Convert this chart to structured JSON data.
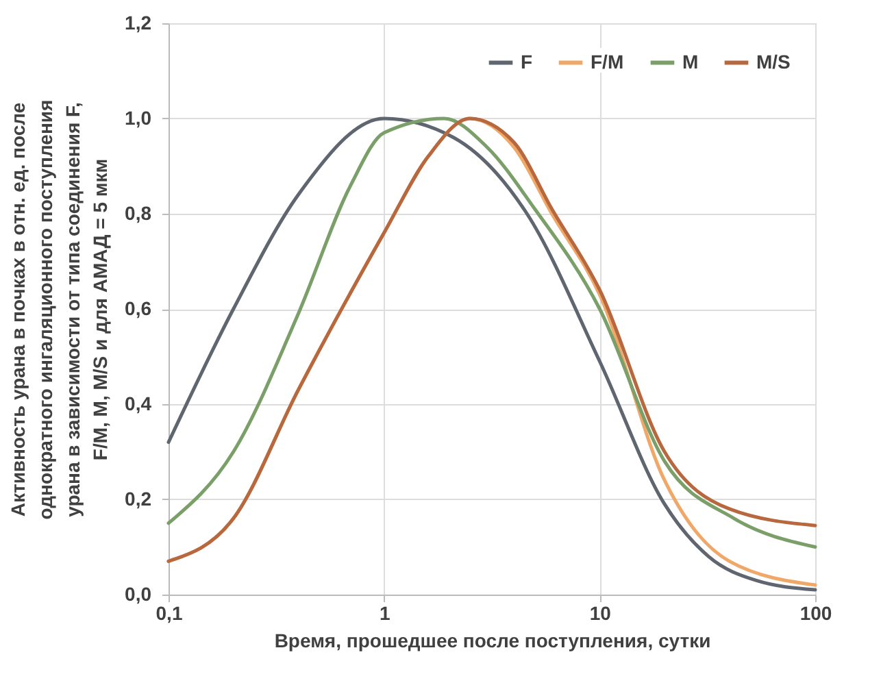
{
  "chart_data": {
    "type": "line",
    "xlabel": "Время, прошедшее после поступления, сутки",
    "ylabel": "Активность урана в почках в отн. ед.  после\nоднократного ингаляционного поступления\nурана в зависимости от типа соединения F,\nF/M, M, M/S и для АМАД = 5 мкм",
    "log": "x",
    "grid": true,
    "legend": "top right",
    "line_style": "solid",
    "xlim": [
      0.1,
      100
    ],
    "xticks": [
      {
        "value": 0.1,
        "label": "0,1"
      },
      1,
      10,
      100
    ],
    "ylim": [
      0,
      1.2
    ],
    "yticks": [
      {
        "value": 0,
        "label": "0,0"
      },
      {
        "value": 0.2,
        "label": "0,2"
      },
      {
        "value": 0.4,
        "label": "0,4"
      },
      {
        "value": 0.6,
        "label": "0,6"
      },
      {
        "value": 0.8,
        "label": "0,8"
      },
      {
        "value": 1,
        "label": "1,0"
      },
      {
        "value": 1.2,
        "label": "1,2"
      }
    ],
    "series": [
      {
        "name": "F",
        "color": "#5f6670",
        "x": [
          0.1,
          0.2,
          0.4,
          1,
          2.1,
          4.6,
          10,
          20,
          32,
          53,
          100
        ],
        "values": [
          0.32,
          0.6,
          0.84,
          1.0,
          0.96,
          0.8,
          0.49,
          0.19,
          0.08,
          0.03,
          0.01
        ]
      },
      {
        "name": "F/M",
        "color": "#f0a868",
        "x": [
          0.1,
          0.2,
          0.4,
          1,
          1.6,
          2.5,
          4,
          6,
          10,
          20,
          40,
          100
        ],
        "values": [
          0.07,
          0.16,
          0.43,
          0.76,
          0.92,
          1.0,
          0.94,
          0.8,
          0.63,
          0.24,
          0.07,
          0.02
        ]
      },
      {
        "name": "M",
        "color": "#7a9f68",
        "x": [
          0.1,
          0.2,
          0.4,
          0.7,
          1,
          1.9,
          3,
          5,
          10,
          20,
          42,
          100
        ],
        "values": [
          0.15,
          0.3,
          0.59,
          0.86,
          0.97,
          1.0,
          0.94,
          0.81,
          0.6,
          0.28,
          0.16,
          0.1
        ]
      },
      {
        "name": "M/S",
        "color": "#b8683e",
        "x": [
          0.1,
          0.2,
          0.4,
          1,
          1.6,
          2.5,
          4,
          6,
          10,
          20,
          40,
          100
        ],
        "values": [
          0.07,
          0.16,
          0.43,
          0.76,
          0.92,
          1.0,
          0.95,
          0.81,
          0.64,
          0.3,
          0.18,
          0.145
        ]
      }
    ]
  }
}
